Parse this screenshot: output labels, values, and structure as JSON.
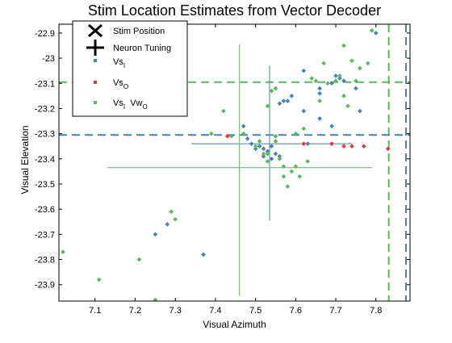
{
  "chart_data": {
    "type": "scatter",
    "title": "Stim Location Estimates from Vector Decoder",
    "xlabel": "Visual Azimuth",
    "ylabel": "Visual Elevation",
    "xlim": [
      7.01,
      7.885
    ],
    "ylim": [
      -23.965,
      -22.865
    ],
    "xticks": [
      7.1,
      7.2,
      7.3,
      7.4,
      7.5,
      7.6,
      7.7,
      7.8
    ],
    "yticks": [
      -22.9,
      -23.0,
      -23.1,
      -23.2,
      -23.3,
      -23.4,
      -23.5,
      -23.6,
      -23.7,
      -23.8,
      -23.9
    ],
    "xtick_labels": [
      "7.1",
      "7.2",
      "7.3",
      "7.4",
      "7.5",
      "7.6",
      "7.7",
      "7.8"
    ],
    "ytick_labels": [
      "-22.9",
      "-23",
      "-23.1",
      "-23.2",
      "-23.3",
      "-23.4",
      "-23.5",
      "-23.6",
      "-23.7",
      "-23.8",
      "-23.9"
    ],
    "grid": false,
    "legend": {
      "position": "top-left",
      "entries": [
        {
          "label": "Stim Position",
          "marker": "x-icon"
        },
        {
          "label": "Neuron Tuning",
          "marker": "plus-icon"
        },
        {
          "label_main": "Vs",
          "label_sub": "I",
          "color": "#4682b4",
          "marker": "point"
        },
        {
          "label_main": "Vs",
          "label_sub": "O",
          "color": "#e8383c",
          "marker": "point"
        },
        {
          "label_main": "Vs",
          "label_sub": "I",
          "label_mid": "  Vw",
          "label_sub2": "O",
          "color": "#5cb85c",
          "marker": "point"
        }
      ]
    },
    "series": [
      {
        "color": "#4682b4",
        "points": [
          [
            7.37,
            -23.78
          ],
          [
            7.25,
            -23.7
          ],
          [
            7.28,
            -23.66
          ],
          [
            7.47,
            -23.27
          ],
          [
            7.48,
            -23.32
          ],
          [
            7.49,
            -23.34
          ],
          [
            7.5,
            -23.36
          ],
          [
            7.51,
            -23.35
          ],
          [
            7.52,
            -23.36
          ],
          [
            7.52,
            -23.39
          ],
          [
            7.53,
            -23.37
          ],
          [
            7.54,
            -23.4
          ],
          [
            7.55,
            -23.38
          ],
          [
            7.56,
            -23.39
          ],
          [
            7.54,
            -23.35
          ],
          [
            7.55,
            -23.31
          ],
          [
            7.56,
            -23.18
          ],
          [
            7.57,
            -23.17
          ],
          [
            7.58,
            -23.17
          ],
          [
            7.59,
            -23.15
          ],
          [
            7.62,
            -23.05
          ],
          [
            7.62,
            -23.21
          ],
          [
            7.63,
            -23.34
          ],
          [
            7.66,
            -23.24
          ],
          [
            7.66,
            -23.14
          ],
          [
            7.66,
            -23.12
          ],
          [
            7.69,
            -23.27
          ],
          [
            7.69,
            -23.1
          ],
          [
            7.7,
            -23.07
          ],
          [
            7.71,
            -23.08
          ],
          [
            7.72,
            -23.09
          ],
          [
            7.75,
            -23.12
          ],
          [
            7.76,
            -23.21
          ],
          [
            7.79,
            -22.89
          ],
          [
            7.8,
            -22.9
          ]
        ]
      },
      {
        "color": "#e8383c",
        "points": [
          [
            7.43,
            -23.31
          ],
          [
            7.55,
            -23.33
          ],
          [
            7.62,
            -23.34
          ],
          [
            7.69,
            -23.34
          ],
          [
            7.72,
            -23.35
          ],
          [
            7.74,
            -23.35
          ],
          [
            7.77,
            -23.35
          ],
          [
            7.83,
            -23.36
          ]
        ]
      },
      {
        "color": "#5cb85c",
        "points": [
          [
            7.02,
            -23.77
          ],
          [
            7.11,
            -23.88
          ],
          [
            7.21,
            -23.8
          ],
          [
            7.25,
            -23.96
          ],
          [
            7.29,
            -23.61
          ],
          [
            7.3,
            -23.64
          ],
          [
            7.39,
            -23.3
          ],
          [
            7.42,
            -23.21
          ],
          [
            7.44,
            -23.31
          ],
          [
            7.47,
            -23.3
          ],
          [
            7.5,
            -23.35
          ],
          [
            7.51,
            -23.33
          ],
          [
            7.52,
            -23.38
          ],
          [
            7.53,
            -23.41
          ],
          [
            7.53,
            -23.38
          ],
          [
            7.55,
            -23.33
          ],
          [
            7.56,
            -23.4
          ],
          [
            7.57,
            -23.43
          ],
          [
            7.57,
            -23.47
          ],
          [
            7.58,
            -23.51
          ],
          [
            7.59,
            -23.45
          ],
          [
            7.6,
            -23.43
          ],
          [
            7.61,
            -23.47
          ],
          [
            7.63,
            -23.41
          ],
          [
            7.55,
            -23.31
          ],
          [
            7.6,
            -23.3
          ],
          [
            7.54,
            -23.13
          ],
          [
            7.55,
            -23.12
          ],
          [
            7.53,
            -23.19
          ],
          [
            7.62,
            -23.28
          ],
          [
            7.64,
            -23.08
          ],
          [
            7.65,
            -23.09
          ],
          [
            7.66,
            -23.17
          ],
          [
            7.67,
            -23.02
          ],
          [
            7.68,
            -23.1
          ],
          [
            7.7,
            -23.09
          ],
          [
            7.71,
            -23.07
          ],
          [
            7.72,
            -23.15
          ],
          [
            7.73,
            -23.19
          ],
          [
            7.74,
            -23.01
          ],
          [
            7.75,
            -23.09
          ],
          [
            7.76,
            -23.04
          ],
          [
            7.78,
            -23.02
          ],
          [
            7.79,
            -22.89
          ],
          [
            7.72,
            -22.95
          ]
        ]
      }
    ],
    "stim_position": {
      "x": 7.875,
      "y": -23.305,
      "color": "#4682b4"
    },
    "stim_position_alt": {
      "x": 7.832,
      "y": -23.095,
      "color": "#5cb85c"
    },
    "neuron_tuning": [
      {
        "color": "#4682b4",
        "x": 7.535,
        "y": -23.34,
        "x_extent": [
          7.34,
          7.74
        ],
        "y_extent": [
          -23.645,
          -23.03
        ]
      },
      {
        "color": "#5cb85c",
        "x": 7.46,
        "y": -23.435,
        "x_extent": [
          7.13,
          7.79
        ],
        "y_extent": [
          -23.945,
          -22.945
        ]
      }
    ]
  }
}
